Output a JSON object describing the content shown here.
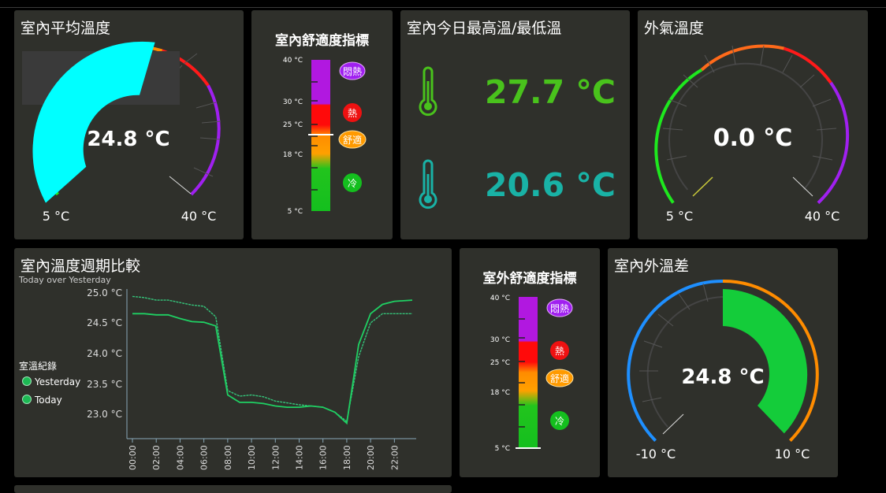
{
  "cards": {
    "indoor_avg": {
      "title": "室內平均溫度",
      "value": "24.8 °C",
      "min": "5 °C",
      "max": "40 °C"
    },
    "comfort_in": {
      "title": "室內舒適度指標",
      "ticks": [
        "40 °C",
        "30 °C",
        "25 °C",
        "18 °C",
        "5 °C"
      ],
      "badges": [
        "悶熱",
        "熱",
        "舒適",
        "冷"
      ]
    },
    "hilo": {
      "title": "室內今日最高溫/最低溫",
      "high": "27.7 °C",
      "low": "20.6 °C"
    },
    "outdoor": {
      "title": "外氣溫度",
      "value": "0.0 °C",
      "min": "5 °C",
      "max": "40 °C"
    },
    "weekly": {
      "title": "室內溫度週期比較",
      "subtitle": "Today over Yesterday",
      "legend_title": "室溫紀錄",
      "legend": [
        "Yesterday",
        "Today"
      ],
      "yticks": [
        "25.0 °C",
        "24.5 °C",
        "24.0 °C",
        "23.5 °C",
        "23.0 °C"
      ],
      "xticks": [
        "00:00",
        "02:00",
        "04:00",
        "06:00",
        "08:00",
        "10:00",
        "12:00",
        "14:00",
        "16:00",
        "18:00",
        "20:00",
        "22:00"
      ]
    },
    "comfort_out": {
      "title": "室外舒適度指標",
      "ticks": [
        "40 °C",
        "30 °C",
        "25 °C",
        "18 °C",
        "5 °C"
      ],
      "badges": [
        "悶熱",
        "熱",
        "舒適",
        "冷"
      ]
    },
    "diff": {
      "title": "室內外溫差",
      "value": "24.8 °C",
      "min": "-10 °C",
      "max": "10 °C"
    }
  },
  "chart_data": {
    "type": "line",
    "x": [
      0,
      1,
      2,
      3,
      4,
      5,
      6,
      7,
      8,
      9,
      10,
      11,
      12,
      13,
      14,
      15,
      16,
      17,
      18,
      19,
      20,
      21,
      22,
      23.5
    ],
    "series": [
      {
        "name": "Yesterday",
        "values": [
          24.88,
          24.86,
          24.82,
          24.82,
          24.78,
          24.74,
          24.72,
          24.55,
          23.35,
          23.26,
          23.28,
          23.25,
          23.18,
          23.15,
          23.12,
          23.1,
          23.08,
          23.0,
          22.85,
          23.9,
          24.45,
          24.6,
          24.6,
          24.6
        ]
      },
      {
        "name": "Today",
        "values": [
          24.6,
          24.6,
          24.58,
          24.58,
          24.52,
          24.47,
          24.46,
          24.4,
          23.28,
          23.16,
          23.16,
          23.14,
          23.1,
          23.08,
          23.08,
          23.1,
          23.08,
          23.0,
          22.82,
          24.1,
          24.6,
          24.75,
          24.8,
          24.82
        ]
      }
    ],
    "ylim": [
      22.8,
      25.0
    ],
    "colors": {
      "yesterday": "#35c47a",
      "today": "#1fd063"
    }
  }
}
